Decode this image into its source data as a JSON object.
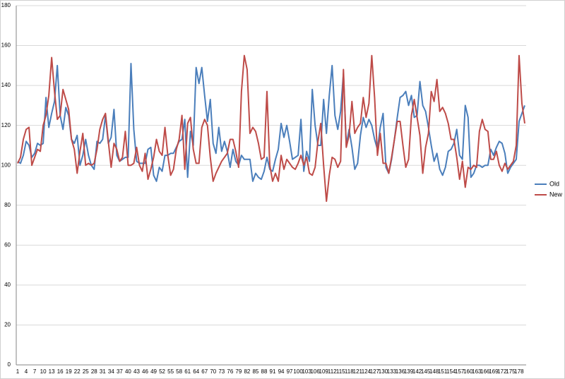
{
  "chart_data": {
    "type": "line",
    "categories": [
      1,
      null,
      null,
      4,
      null,
      null,
      7,
      null,
      null,
      10,
      null,
      null,
      13,
      null,
      null,
      16,
      null,
      null,
      19,
      null,
      null,
      22,
      null,
      null,
      25,
      null,
      null,
      28,
      null,
      null,
      31,
      null,
      null,
      34,
      null,
      null,
      37,
      null,
      null,
      40,
      null,
      null,
      43,
      null,
      null,
      46,
      null,
      null,
      49,
      null,
      null,
      52,
      null,
      null,
      55,
      null,
      null,
      58,
      null,
      null,
      61,
      null,
      null,
      64,
      null,
      null,
      67,
      null,
      null,
      70,
      null,
      null,
      73,
      null,
      null,
      76,
      null,
      null,
      79,
      null,
      null,
      82,
      null,
      null,
      85,
      null,
      null,
      88,
      null,
      null,
      91,
      null,
      null,
      94,
      null,
      null,
      97,
      null,
      null,
      100,
      null,
      null,
      103,
      null,
      null,
      106,
      null,
      null,
      109,
      null,
      null,
      112,
      null,
      null,
      115,
      null,
      null,
      118,
      null,
      null,
      121,
      null,
      null,
      124,
      null,
      null,
      127,
      null,
      null,
      130,
      null,
      null,
      133,
      null,
      null,
      136,
      null,
      null,
      139,
      null,
      null,
      142,
      null,
      null,
      145,
      null,
      null,
      148,
      null,
      null,
      151,
      null,
      null,
      154,
      null,
      null,
      157,
      null,
      null,
      160,
      null,
      null,
      163,
      null,
      null,
      166,
      null,
      null,
      169,
      null,
      null,
      172,
      null,
      null,
      175,
      null,
      null,
      178,
      null,
      null
    ],
    "series": [
      {
        "name": "Old",
        "color": "#4a7ebb",
        "values": [
          102,
          101,
          105,
          112,
          110,
          104,
          106,
          111,
          110,
          111,
          134,
          119,
          126,
          132,
          150,
          125,
          118,
          129,
          125,
          113,
          111,
          115,
          100,
          105,
          113,
          105,
          100,
          98,
          112,
          111,
          113,
          125,
          111,
          114,
          128,
          105,
          102,
          103,
          104,
          104,
          151,
          118,
          102,
          101,
          101,
          101,
          108,
          109,
          95,
          92,
          99,
          97,
          105,
          105,
          106,
          106,
          109,
          112,
          113,
          123,
          94,
          117,
          110,
          149,
          141,
          149,
          135,
          122,
          133,
          111,
          106,
          119,
          107,
          112,
          107,
          99,
          108,
          102,
          100,
          105,
          103,
          103,
          103,
          92,
          96,
          94,
          93,
          97,
          104,
          98,
          97,
          103,
          108,
          121,
          114,
          120,
          112,
          103,
          104,
          105,
          123,
          97,
          107,
          102,
          138,
          120,
          110,
          110,
          133,
          116,
          135,
          150,
          125,
          118,
          127,
          146,
          110,
          118,
          109,
          98,
          101,
          115,
          124,
          119,
          123,
          120,
          113,
          108,
          119,
          126,
          99,
          96,
          103,
          113,
          124,
          134,
          135,
          137,
          130,
          135,
          124,
          125,
          142,
          130,
          127,
          119,
          110,
          102,
          106,
          98,
          95,
          99,
          107,
          108,
          111,
          118,
          105,
          103,
          130,
          124,
          94,
          96,
          100,
          100,
          99,
          100,
          100,
          108,
          105,
          109,
          112,
          111,
          106,
          96,
          99,
          101,
          103,
          122,
          126,
          130
        ]
      },
      {
        "name": "New",
        "color": "#be4b48",
        "values": [
          101,
          104,
          113,
          118,
          119,
          100,
          104,
          108,
          107,
          120,
          125,
          135,
          154,
          137,
          123,
          125,
          138,
          133,
          128,
          113,
          108,
          96,
          107,
          116,
          100,
          101,
          100,
          101,
          108,
          118,
          123,
          126,
          112,
          99,
          111,
          108,
          102,
          104,
          117,
          100,
          100,
          101,
          109,
          100,
          97,
          106,
          93,
          98,
          104,
          113,
          107,
          105,
          119,
          105,
          95,
          98,
          108,
          113,
          125,
          98,
          121,
          124,
          108,
          101,
          101,
          119,
          123,
          120,
          104,
          92,
          96,
          99,
          102,
          104,
          106,
          113,
          113,
          107,
          99,
          137,
          155,
          148,
          116,
          119,
          117,
          111,
          103,
          104,
          137,
          100,
          92,
          96,
          92,
          105,
          98,
          103,
          101,
          99,
          98,
          101,
          105,
          100,
          104,
          96,
          95,
          99,
          112,
          121,
          100,
          82,
          95,
          104,
          103,
          99,
          102,
          148,
          109,
          115,
          132,
          116,
          119,
          121,
          134,
          124,
          131,
          155,
          134,
          105,
          116,
          101,
          101,
          96,
          104,
          113,
          122,
          122,
          110,
          99,
          103,
          125,
          133,
          124,
          115,
          96,
          109,
          116,
          137,
          132,
          143,
          127,
          129,
          126,
          121,
          113,
          113,
          104,
          93,
          102,
          89,
          99,
          98,
          100,
          99,
          117,
          123,
          118,
          117,
          103,
          103,
          107,
          100,
          97,
          101,
          98,
          100,
          102,
          110,
          155,
          131,
          121
        ]
      }
    ],
    "ylim": [
      0,
      180
    ],
    "yticks": [
      0,
      20,
      40,
      60,
      80,
      100,
      120,
      140,
      160,
      180
    ],
    "grid": true,
    "legend": "right"
  }
}
